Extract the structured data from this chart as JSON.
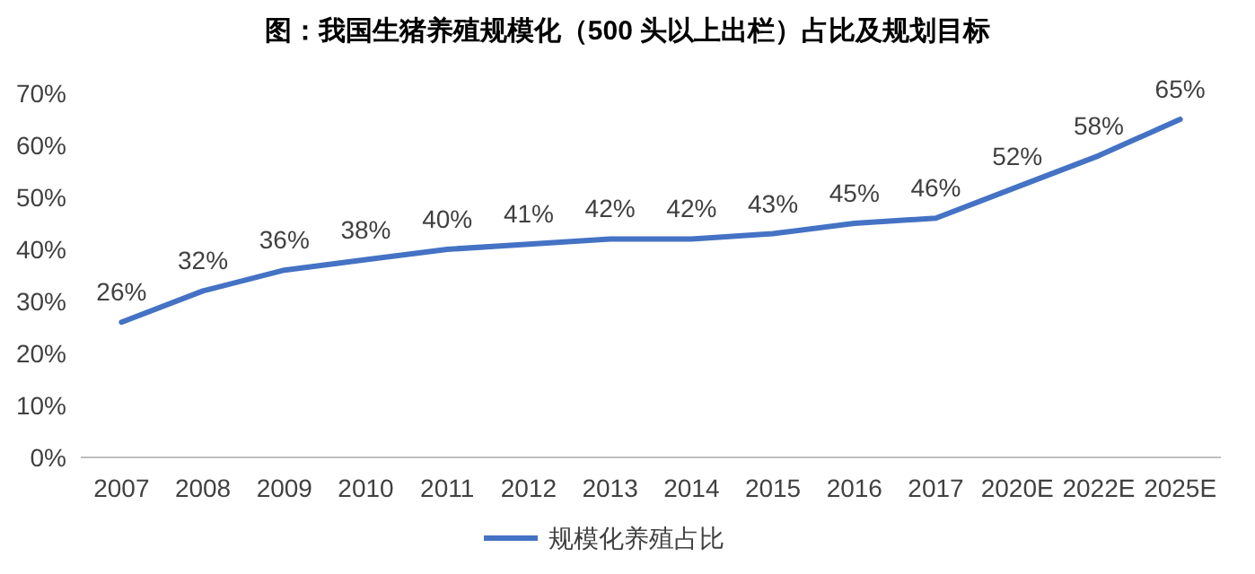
{
  "chart_data": {
    "type": "line",
    "title": "图：我国生猪养殖规模化（500 头以上出栏）占比及规划目标",
    "categories": [
      "2007",
      "2008",
      "2009",
      "2010",
      "2011",
      "2012",
      "2013",
      "2014",
      "2015",
      "2016",
      "2017",
      "2020E",
      "2022E",
      "2025E"
    ],
    "series": [
      {
        "name": "规模化养殖占比",
        "color": "#4472c4",
        "values": [
          26,
          32,
          36,
          38,
          40,
          41,
          42,
          42,
          43,
          45,
          46,
          52,
          58,
          65
        ],
        "value_labels": [
          "26%",
          "32%",
          "36%",
          "38%",
          "40%",
          "41%",
          "42%",
          "42%",
          "43%",
          "45%",
          "46%",
          "52%",
          "58%",
          "65%"
        ]
      }
    ],
    "ylim": [
      0,
      70
    ],
    "yticks": [
      {
        "value": 0,
        "label": "0%"
      },
      {
        "value": 10,
        "label": "10%"
      },
      {
        "value": 20,
        "label": "20%"
      },
      {
        "value": 30,
        "label": "30%"
      },
      {
        "value": 40,
        "label": "40%"
      },
      {
        "value": 50,
        "label": "50%"
      },
      {
        "value": 60,
        "label": "60%"
      },
      {
        "value": 70,
        "label": "70%"
      }
    ],
    "grid": false,
    "legend": "bottom",
    "marker": "none",
    "line_style": "solid"
  }
}
